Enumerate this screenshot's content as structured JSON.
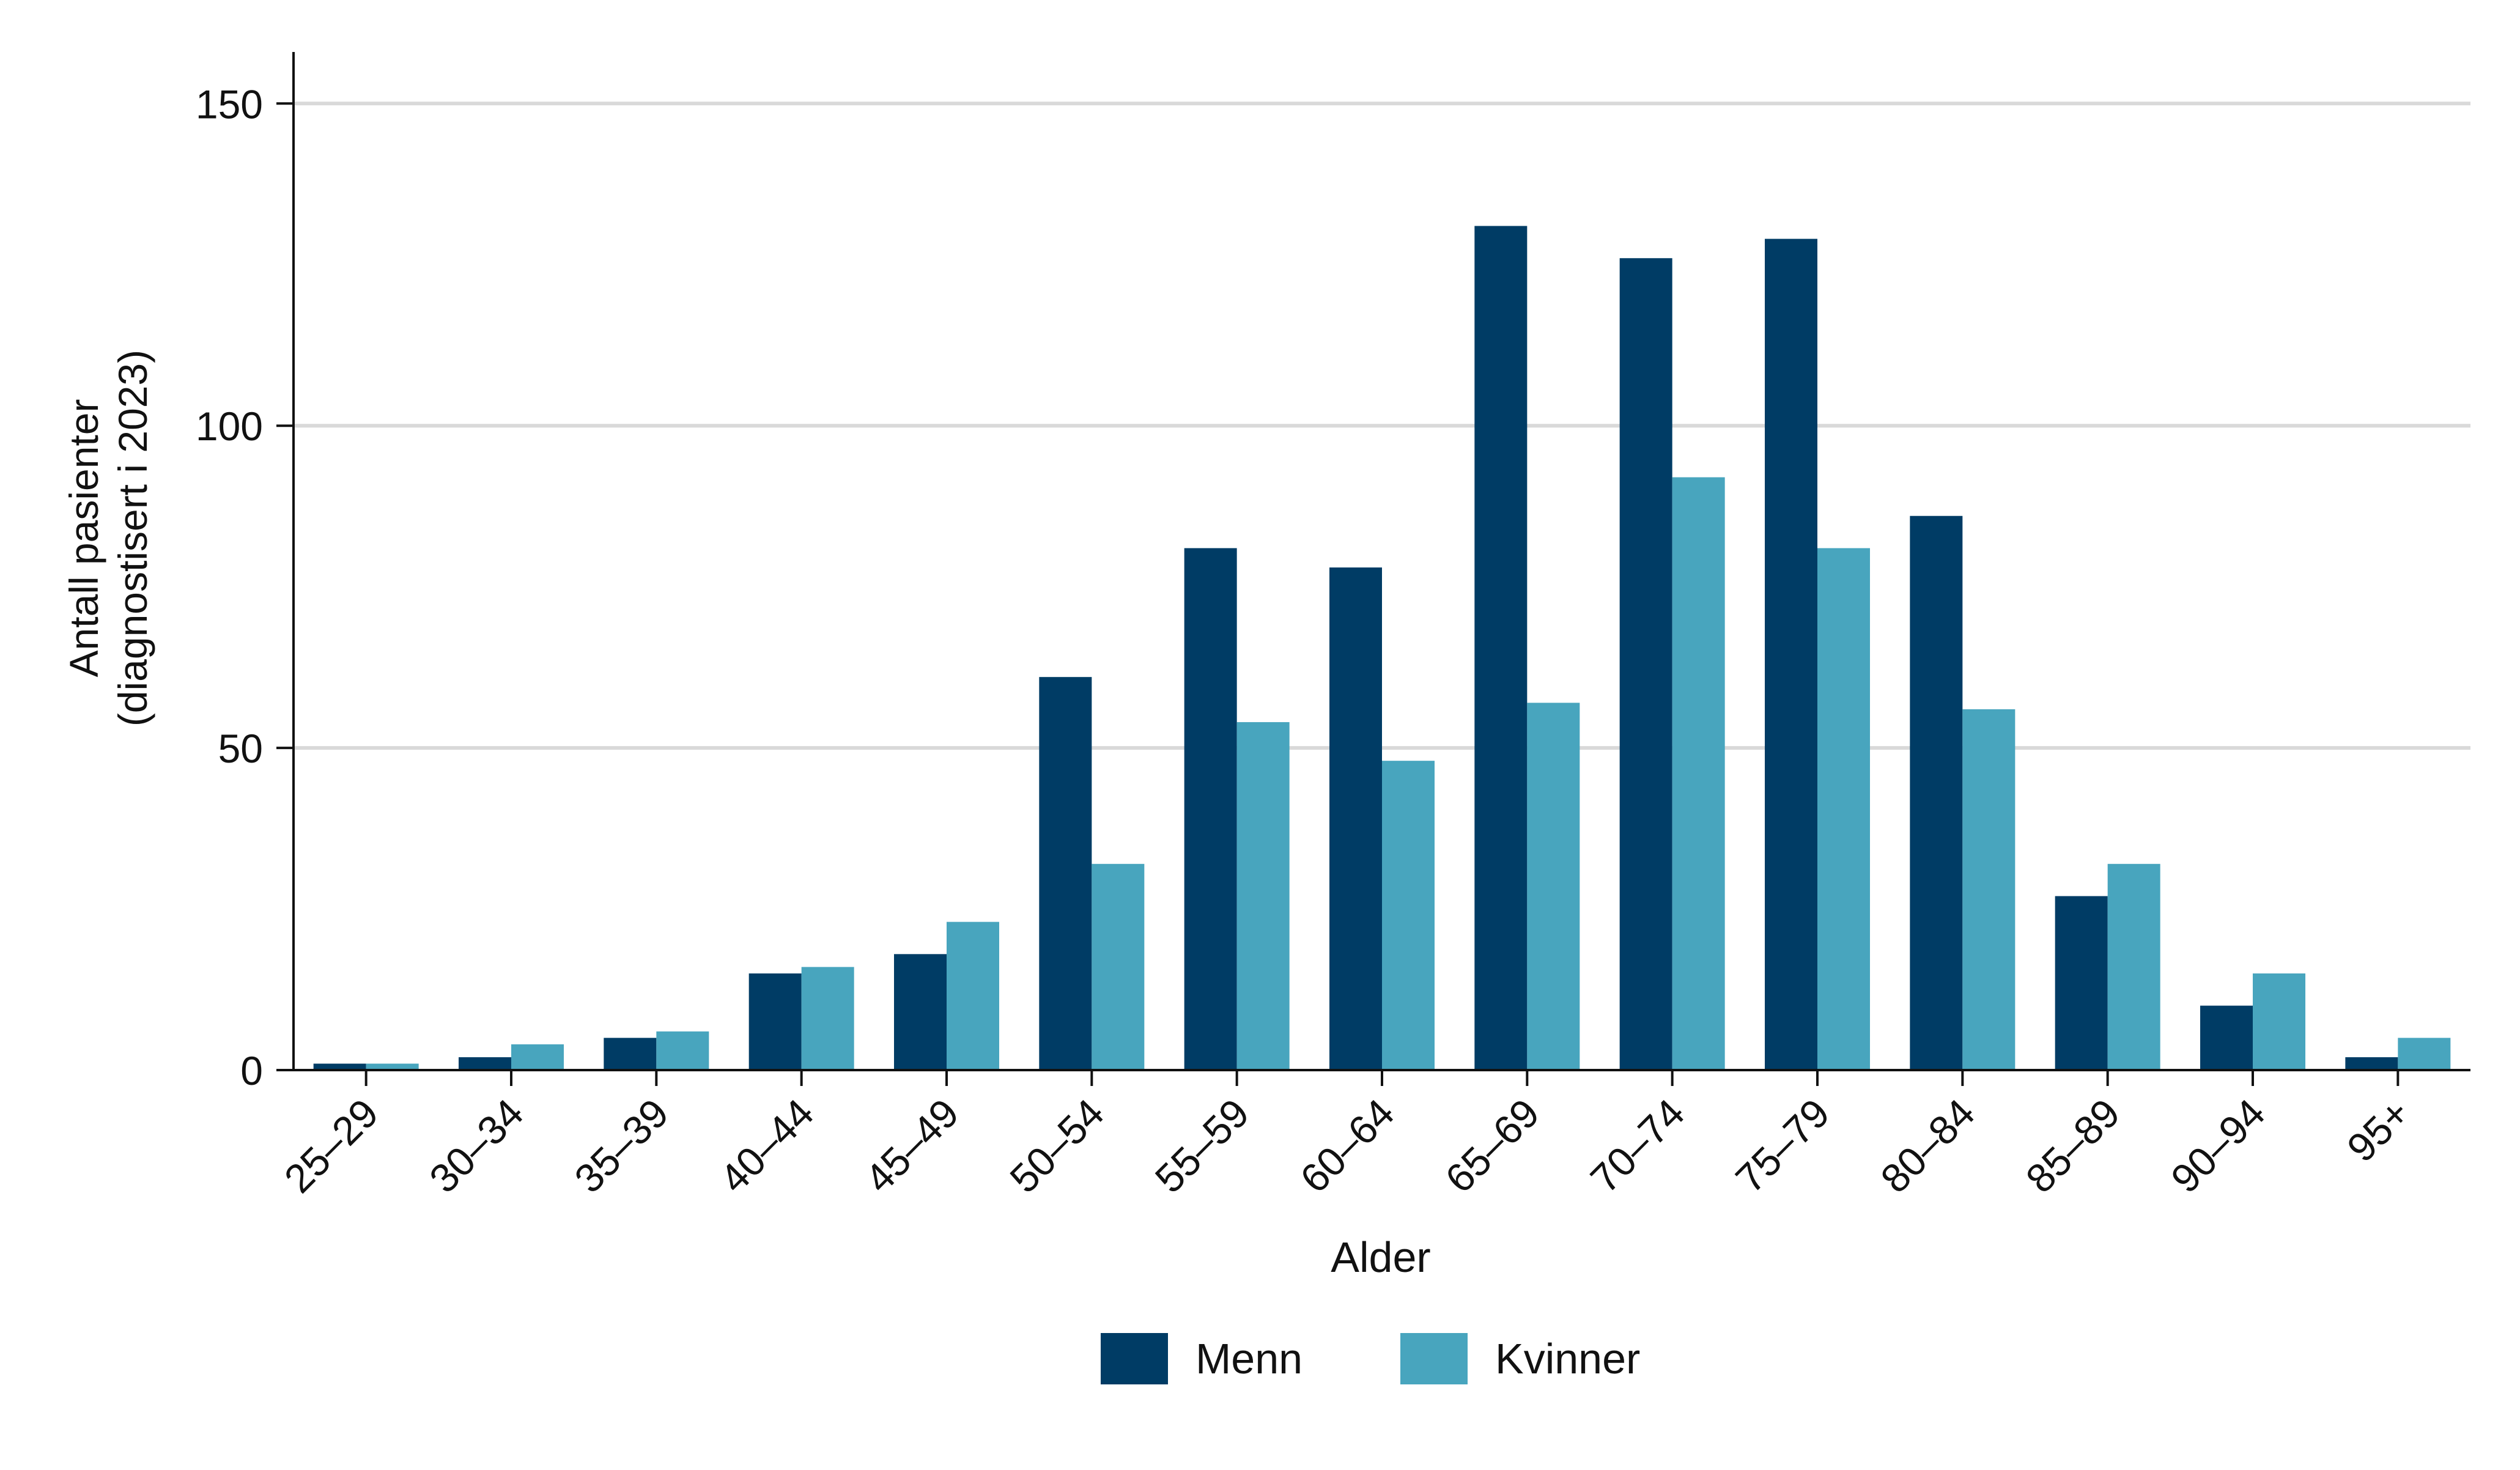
{
  "chart_data": {
    "type": "bar",
    "xlabel": "Alder",
    "ylabel_line1": "Antall pasienter",
    "ylabel_line2": "(diagnostisert i 2023)",
    "ylim": [
      0,
      158
    ],
    "yticks": [
      0,
      50,
      100,
      150
    ],
    "grid": true,
    "legend_position": "bottom-center",
    "categories": [
      "25–29",
      "30–34",
      "35–39",
      "40–44",
      "45–49",
      "50–54",
      "55–59",
      "60–64",
      "65–69",
      "70–74",
      "75–79",
      "80–84",
      "85–89",
      "90–94",
      "95+"
    ],
    "series": [
      {
        "name": "Menn",
        "color": "#003c65",
        "values": [
          1,
          2,
          5,
          15,
          18,
          61,
          81,
          78,
          131,
          126,
          129,
          86,
          27,
          10,
          2
        ]
      },
      {
        "name": "Kvinner",
        "color": "#48a5be",
        "values": [
          1,
          4,
          6,
          16,
          23,
          32,
          54,
          48,
          57,
          92,
          81,
          56,
          32,
          15,
          5
        ]
      }
    ]
  }
}
